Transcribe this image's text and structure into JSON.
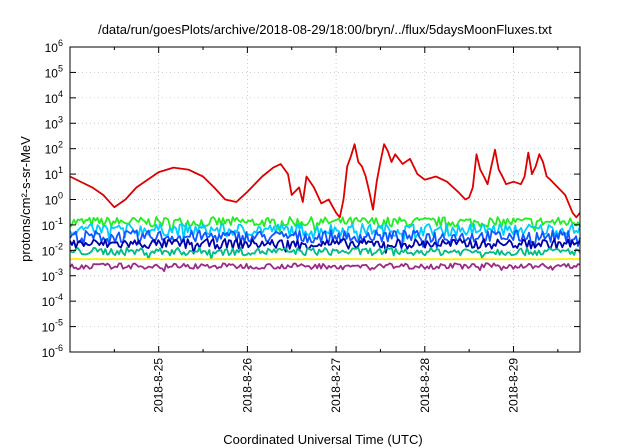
{
  "chart_data": {
    "type": "line",
    "title": "/data/run/goesPlots/archive/2018-08-29/18:00/bryn/../flux/5daysMoonFluxes.txt",
    "xlabel": "Coordinated Universal Time (UTC)",
    "ylabel": "protons/cm²-s-sr-MeV",
    "y_scale": "log",
    "ylim": [
      1e-06,
      1000000.0
    ],
    "y_ticks": [
      {
        "exp": "-6",
        "value": 1e-06
      },
      {
        "exp": "-5",
        "value": 1e-05
      },
      {
        "exp": "-4",
        "value": 0.0001
      },
      {
        "exp": "-3",
        "value": 0.001
      },
      {
        "exp": "-2",
        "value": 0.01
      },
      {
        "exp": "-1",
        "value": 0.1
      },
      {
        "exp": "0",
        "value": 1
      },
      {
        "exp": "1",
        "value": 10
      },
      {
        "exp": "2",
        "value": 100
      },
      {
        "exp": "3",
        "value": 1000
      },
      {
        "exp": "4",
        "value": 10000
      },
      {
        "exp": "5",
        "value": 100000
      },
      {
        "exp": "6",
        "value": 1000000
      }
    ],
    "y_tick_base": "10",
    "xlim": [
      "2018-08-24 00:00",
      "2018-08-29 18:00"
    ],
    "x_ticks": [
      {
        "label": "2018-8-25",
        "date": "2018-08-25 00:00"
      },
      {
        "label": "2018-8-26",
        "date": "2018-08-26 00:00"
      },
      {
        "label": "2018-8-27",
        "date": "2018-08-27 00:00"
      },
      {
        "label": "2018-8-28",
        "date": "2018-08-28 00:00"
      },
      {
        "label": "2018-8-29",
        "date": "2018-08-29 00:00"
      }
    ],
    "grid": true,
    "series": [
      {
        "color": "#dd0000",
        "points": [
          [
            "2018-08-24 00:00",
            8
          ],
          [
            "2018-08-24 06:00",
            3
          ],
          [
            "2018-08-24 09:00",
            1.5
          ],
          [
            "2018-08-24 12:00",
            0.5
          ],
          [
            "2018-08-24 15:00",
            1
          ],
          [
            "2018-08-24 18:00",
            3
          ],
          [
            "2018-08-25 00:00",
            12
          ],
          [
            "2018-08-25 04:00",
            18
          ],
          [
            "2018-08-25 08:00",
            15
          ],
          [
            "2018-08-25 12:00",
            8
          ],
          [
            "2018-08-25 15:00",
            3
          ],
          [
            "2018-08-25 18:00",
            1
          ],
          [
            "2018-08-25 21:00",
            0.8
          ],
          [
            "2018-08-26 00:00",
            2
          ],
          [
            "2018-08-26 04:00",
            8
          ],
          [
            "2018-08-26 07:00",
            18
          ],
          [
            "2018-08-26 09:00",
            25
          ],
          [
            "2018-08-26 11:00",
            10
          ],
          [
            "2018-08-26 12:00",
            1.5
          ],
          [
            "2018-08-26 14:00",
            3
          ],
          [
            "2018-08-26 15:00",
            0.8
          ],
          [
            "2018-08-26 16:00",
            8
          ],
          [
            "2018-08-26 18:00",
            3
          ],
          [
            "2018-08-26 20:00",
            0.7
          ],
          [
            "2018-08-26 22:00",
            1
          ],
          [
            "2018-08-27 00:00",
            0.3
          ],
          [
            "2018-08-27 01:00",
            0.2
          ],
          [
            "2018-08-27 02:00",
            1
          ],
          [
            "2018-08-27 03:00",
            20
          ],
          [
            "2018-08-27 04:00",
            50
          ],
          [
            "2018-08-27 05:00",
            150
          ],
          [
            "2018-08-27 06:00",
            30
          ],
          [
            "2018-08-27 07:00",
            20
          ],
          [
            "2018-08-27 08:00",
            8
          ],
          [
            "2018-08-27 09:00",
            2
          ],
          [
            "2018-08-27 10:00",
            0.4
          ],
          [
            "2018-08-27 11:00",
            5
          ],
          [
            "2018-08-27 12:00",
            30
          ],
          [
            "2018-08-27 13:00",
            150
          ],
          [
            "2018-08-27 14:00",
            80
          ],
          [
            "2018-08-27 15:00",
            30
          ],
          [
            "2018-08-27 16:00",
            60
          ],
          [
            "2018-08-27 18:00",
            25
          ],
          [
            "2018-08-27 20:00",
            40
          ],
          [
            "2018-08-27 22:00",
            10
          ],
          [
            "2018-08-28 00:00",
            6
          ],
          [
            "2018-08-28 03:00",
            8
          ],
          [
            "2018-08-28 06:00",
            5
          ],
          [
            "2018-08-28 09:00",
            2
          ],
          [
            "2018-08-28 11:00",
            1
          ],
          [
            "2018-08-28 12:00",
            1.2
          ],
          [
            "2018-08-28 13:00",
            3
          ],
          [
            "2018-08-28 14:00",
            60
          ],
          [
            "2018-08-28 15:00",
            15
          ],
          [
            "2018-08-28 16:00",
            8
          ],
          [
            "2018-08-28 17:00",
            4
          ],
          [
            "2018-08-28 18:00",
            20
          ],
          [
            "2018-08-28 19:00",
            90
          ],
          [
            "2018-08-28 20:00",
            15
          ],
          [
            "2018-08-28 21:00",
            8
          ],
          [
            "2018-08-28 22:00",
            4
          ],
          [
            "2018-08-29 00:00",
            5
          ],
          [
            "2018-08-29 02:00",
            4
          ],
          [
            "2018-08-29 03:00",
            8
          ],
          [
            "2018-08-29 04:00",
            70
          ],
          [
            "2018-08-29 05:00",
            10
          ],
          [
            "2018-08-29 06:00",
            20
          ],
          [
            "2018-08-29 07:00",
            60
          ],
          [
            "2018-08-29 08:00",
            30
          ],
          [
            "2018-08-29 09:00",
            8
          ],
          [
            "2018-08-29 10:00",
            6
          ],
          [
            "2018-08-29 12:00",
            3
          ],
          [
            "2018-08-29 14:00",
            1.5
          ],
          [
            "2018-08-29 16:00",
            0.3
          ],
          [
            "2018-08-29 17:00",
            0.2
          ],
          [
            "2018-08-29 18:00",
            0.3
          ]
        ]
      },
      {
        "color": "#22ee22",
        "level": 0.13,
        "spread": 0.09,
        "kind": "noisy"
      },
      {
        "color": "#00ccff",
        "level": 0.065,
        "spread": 0.11,
        "kind": "noisy"
      },
      {
        "color": "#1155ff",
        "level": 0.035,
        "spread": 0.11,
        "kind": "noisy"
      },
      {
        "color": "#0000aa",
        "level": 0.018,
        "spread": 0.09,
        "kind": "noisy"
      },
      {
        "color": "#00bb88",
        "level": 0.009,
        "spread": 0.07,
        "kind": "noisy"
      },
      {
        "color": "#ffee00",
        "level": 0.0045,
        "spread": 0.02,
        "kind": "smooth"
      },
      {
        "color": "#9a2a8a",
        "level": 0.0024,
        "spread": 0.05,
        "kind": "noisy"
      }
    ]
  }
}
